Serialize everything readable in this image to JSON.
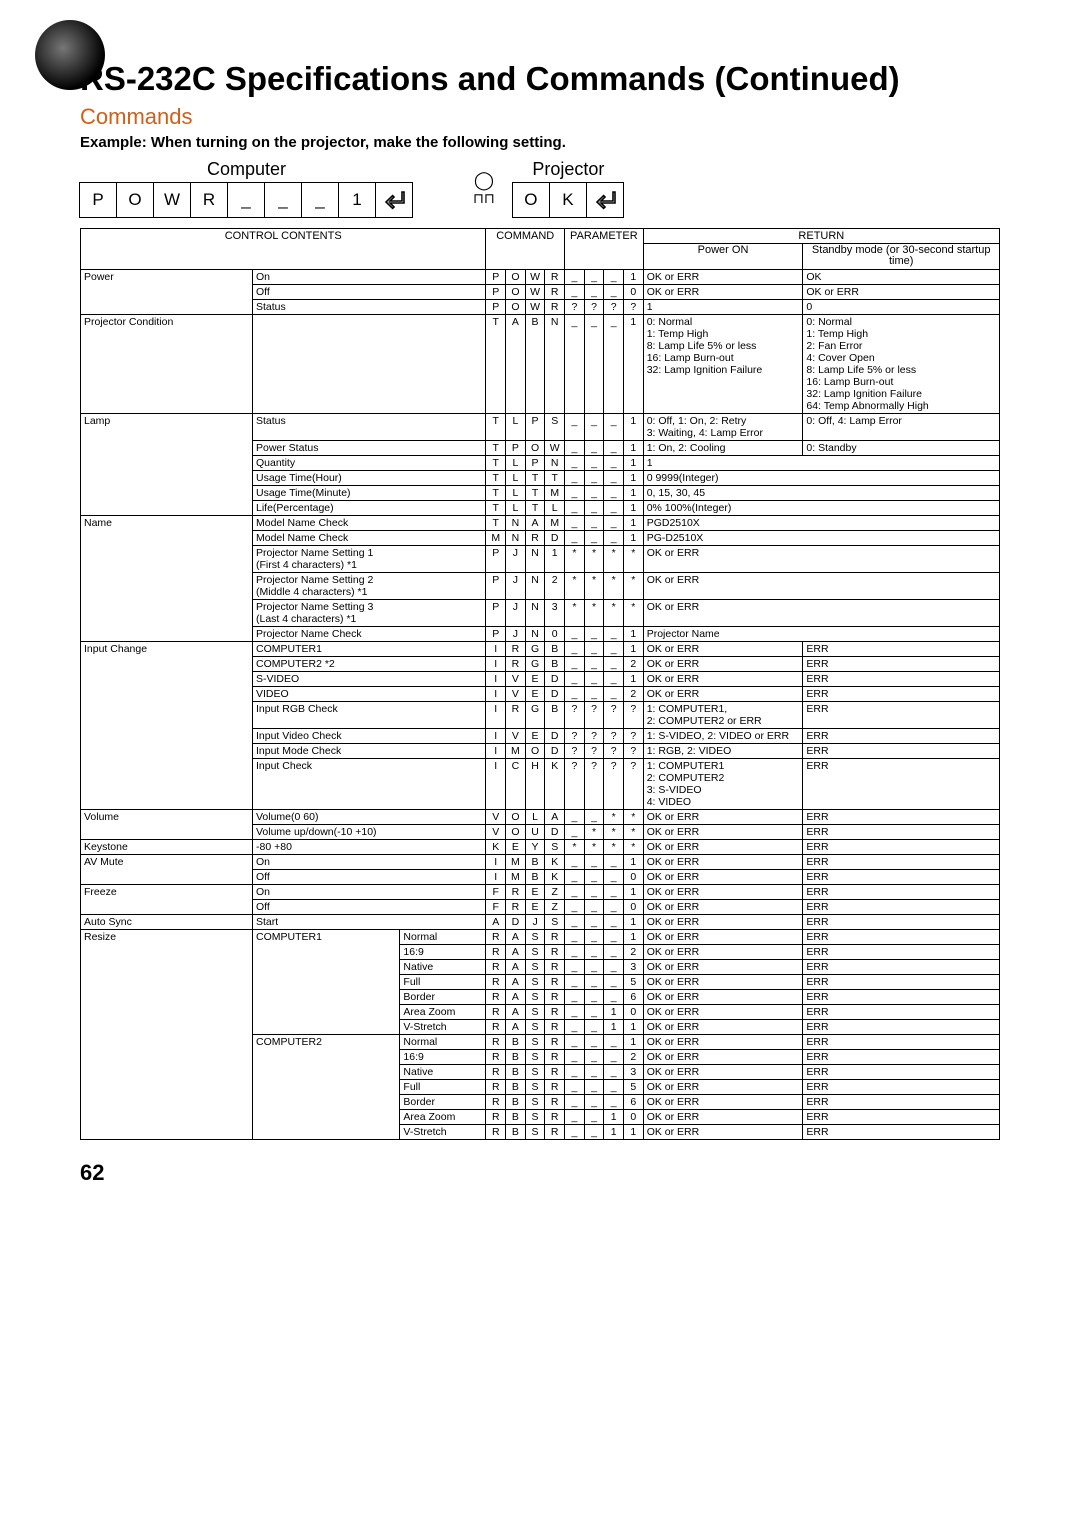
{
  "title": "RS-232C Specifications and Commands (Continued)",
  "subhead": "Commands",
  "example": "Example: When turning on the projector, make the following setting.",
  "computer_label": "Computer",
  "projector_label": "Projector",
  "computer_seq": [
    "P",
    "O",
    "W",
    "R",
    "_",
    "_",
    "_",
    "1",
    "↵"
  ],
  "projector_seq": [
    "O",
    "K",
    "↵"
  ],
  "page_num": "62",
  "headers": {
    "control": "CONTROL CONTENTS",
    "command": "COMMAND",
    "parameter": "PARAMETER",
    "return": "RETURN",
    "power_on": "Power ON",
    "standby": "Standby mode\n(or 30-second startup time)"
  },
  "rows": [
    {
      "g": "Power",
      "c": "On",
      "s": "",
      "cmd": [
        "P",
        "O",
        "W",
        "R",
        "_",
        "_",
        "_",
        "1"
      ],
      "r1": "OK or ERR",
      "r2": "OK"
    },
    {
      "g": "",
      "c": "Off",
      "s": "",
      "cmd": [
        "P",
        "O",
        "W",
        "R",
        "_",
        "_",
        "_",
        "0"
      ],
      "r1": "OK or ERR",
      "r2": "OK or ERR"
    },
    {
      "g": "",
      "c": "Status",
      "s": "",
      "cmd": [
        "P",
        "O",
        "W",
        "R",
        "?",
        "?",
        "?",
        "?"
      ],
      "r1": "1",
      "r2": "0"
    },
    {
      "g": "Projector Condition",
      "c": "",
      "s": "",
      "cmd": [
        "T",
        "A",
        "B",
        "N",
        "_",
        "_",
        "_",
        "1"
      ],
      "r1": "0: Normal\n1: Temp High\n8: Lamp Life 5% or less\n16: Lamp Burn-out\n32: Lamp Ignition Failure",
      "r2": "0: Normal\n1: Temp High\n2: Fan Error\n4: Cover Open\n8: Lamp Life 5% or less\n16: Lamp Burn-out\n32: Lamp Ignition Failure\n64: Temp Abnormally High"
    },
    {
      "g": "Lamp",
      "c": "Status",
      "s": "",
      "cmd": [
        "T",
        "L",
        "P",
        "S",
        "_",
        "_",
        "_",
        "1"
      ],
      "r1": "0: Off, 1: On, 2: Retry\n3: Waiting, 4: Lamp Error",
      "r2": "0: Off, 4: Lamp Error"
    },
    {
      "g": "",
      "c": "Power Status",
      "s": "",
      "cmd": [
        "T",
        "P",
        "O",
        "W",
        "_",
        "_",
        "_",
        "1"
      ],
      "r1": "1: On, 2: Cooling",
      "r2": "0: Standby"
    },
    {
      "g": "",
      "c": "Quantity",
      "s": "",
      "cmd": [
        "T",
        "L",
        "P",
        "N",
        "_",
        "_",
        "_",
        "1"
      ],
      "r1": "1",
      "r2": "",
      "span": true
    },
    {
      "g": "",
      "c": "Usage Time(Hour)",
      "s": "",
      "cmd": [
        "T",
        "L",
        "T",
        "T",
        "_",
        "_",
        "_",
        "1"
      ],
      "r1": "0   9999(Integer)",
      "r2": "",
      "span": true
    },
    {
      "g": "",
      "c": "Usage Time(Minute)",
      "s": "",
      "cmd": [
        "T",
        "L",
        "T",
        "M",
        "_",
        "_",
        "_",
        "1"
      ],
      "r1": "0, 15, 30, 45",
      "r2": "",
      "span": true
    },
    {
      "g": "",
      "c": "Life(Percentage)",
      "s": "",
      "cmd": [
        "T",
        "L",
        "T",
        "L",
        "_",
        "_",
        "_",
        "1"
      ],
      "r1": "0%   100%(Integer)",
      "r2": "",
      "span": true
    },
    {
      "g": "Name",
      "c": "Model Name Check",
      "s": "",
      "cmd": [
        "T",
        "N",
        "A",
        "M",
        "_",
        "_",
        "_",
        "1"
      ],
      "r1": "PGD2510X",
      "r2": "",
      "span": true
    },
    {
      "g": "",
      "c": "Model Name Check",
      "s": "",
      "cmd": [
        "M",
        "N",
        "R",
        "D",
        "_",
        "_",
        "_",
        "1"
      ],
      "r1": "PG-D2510X",
      "r2": "",
      "span": true
    },
    {
      "g": "",
      "c": "Projector Name Setting 1\n(First 4 characters) *1",
      "s": "",
      "cmd": [
        "P",
        "J",
        "N",
        "1",
        "*",
        "*",
        "*",
        "*"
      ],
      "r1": "OK or ERR",
      "r2": "",
      "span": true
    },
    {
      "g": "",
      "c": "Projector Name Setting 2\n(Middle 4 characters) *1",
      "s": "",
      "cmd": [
        "P",
        "J",
        "N",
        "2",
        "*",
        "*",
        "*",
        "*"
      ],
      "r1": "OK or ERR",
      "r2": "",
      "span": true
    },
    {
      "g": "",
      "c": "Projector Name Setting 3\n(Last 4 characters) *1",
      "s": "",
      "cmd": [
        "P",
        "J",
        "N",
        "3",
        "*",
        "*",
        "*",
        "*"
      ],
      "r1": "OK or ERR",
      "r2": "",
      "span": true
    },
    {
      "g": "",
      "c": "Projector Name Check",
      "s": "",
      "cmd": [
        "P",
        "J",
        "N",
        "0",
        "_",
        "_",
        "_",
        "1"
      ],
      "r1": "Projector Name",
      "r2": "",
      "span": true
    },
    {
      "g": "Input Change",
      "c": "COMPUTER1",
      "s": "",
      "cmd": [
        "I",
        "R",
        "G",
        "B",
        "_",
        "_",
        "_",
        "1"
      ],
      "r1": "OK or ERR",
      "r2": "ERR"
    },
    {
      "g": "",
      "c": "COMPUTER2 *2",
      "s": "",
      "cmd": [
        "I",
        "R",
        "G",
        "B",
        "_",
        "_",
        "_",
        "2"
      ],
      "r1": "OK or ERR",
      "r2": "ERR"
    },
    {
      "g": "",
      "c": "S-VIDEO",
      "s": "",
      "cmd": [
        "I",
        "V",
        "E",
        "D",
        "_",
        "_",
        "_",
        "1"
      ],
      "r1": "OK or ERR",
      "r2": "ERR"
    },
    {
      "g": "",
      "c": "VIDEO",
      "s": "",
      "cmd": [
        "I",
        "V",
        "E",
        "D",
        "_",
        "_",
        "_",
        "2"
      ],
      "r1": "OK or ERR",
      "r2": "ERR"
    },
    {
      "g": "",
      "c": "Input RGB Check",
      "s": "",
      "cmd": [
        "I",
        "R",
        "G",
        "B",
        "?",
        "?",
        "?",
        "?"
      ],
      "r1": "1: COMPUTER1,\n2: COMPUTER2 or ERR",
      "r2": "ERR"
    },
    {
      "g": "",
      "c": "Input Video Check",
      "s": "",
      "cmd": [
        "I",
        "V",
        "E",
        "D",
        "?",
        "?",
        "?",
        "?"
      ],
      "r1": "1: S-VIDEO, 2: VIDEO or ERR",
      "r2": "ERR"
    },
    {
      "g": "",
      "c": "Input Mode Check",
      "s": "",
      "cmd": [
        "I",
        "M",
        "O",
        "D",
        "?",
        "?",
        "?",
        "?"
      ],
      "r1": "1: RGB, 2: VIDEO",
      "r2": "ERR"
    },
    {
      "g": "",
      "c": "Input Check",
      "s": "",
      "cmd": [
        "I",
        "C",
        "H",
        "K",
        "?",
        "?",
        "?",
        "?"
      ],
      "r1": "1: COMPUTER1\n2: COMPUTER2\n3: S-VIDEO\n4: VIDEO",
      "r2": "ERR"
    },
    {
      "g": "Volume",
      "c": "Volume(0   60)",
      "s": "",
      "cmd": [
        "V",
        "O",
        "L",
        "A",
        "_",
        "_",
        "*",
        "*"
      ],
      "r1": "OK or ERR",
      "r2": "ERR"
    },
    {
      "g": "",
      "c": "Volume up/down(-10   +10)",
      "s": "",
      "cmd": [
        "V",
        "O",
        "U",
        "D",
        "_",
        "*",
        "*",
        "*"
      ],
      "r1": "OK or ERR",
      "r2": "ERR"
    },
    {
      "g": "Keystone",
      "c": "-80   +80",
      "s": "",
      "cmd": [
        "K",
        "E",
        "Y",
        "S",
        "*",
        "*",
        "*",
        "*"
      ],
      "r1": "OK or ERR",
      "r2": "ERR"
    },
    {
      "g": "AV Mute",
      "c": "On",
      "s": "",
      "cmd": [
        "I",
        "M",
        "B",
        "K",
        "_",
        "_",
        "_",
        "1"
      ],
      "r1": "OK or ERR",
      "r2": "ERR"
    },
    {
      "g": "",
      "c": "Off",
      "s": "",
      "cmd": [
        "I",
        "M",
        "B",
        "K",
        "_",
        "_",
        "_",
        "0"
      ],
      "r1": "OK or ERR",
      "r2": "ERR"
    },
    {
      "g": "Freeze",
      "c": "On",
      "s": "",
      "cmd": [
        "F",
        "R",
        "E",
        "Z",
        "_",
        "_",
        "_",
        "1"
      ],
      "r1": "OK or ERR",
      "r2": "ERR"
    },
    {
      "g": "",
      "c": "Off",
      "s": "",
      "cmd": [
        "F",
        "R",
        "E",
        "Z",
        "_",
        "_",
        "_",
        "0"
      ],
      "r1": "OK or ERR",
      "r2": "ERR"
    },
    {
      "g": "Auto Sync",
      "c": "Start",
      "s": "",
      "cmd": [
        "A",
        "D",
        "J",
        "S",
        "_",
        "_",
        "_",
        "1"
      ],
      "r1": "OK or ERR",
      "r2": "ERR"
    },
    {
      "g": "Resize",
      "c": "COMPUTER1",
      "s": "Normal",
      "cmd": [
        "R",
        "A",
        "S",
        "R",
        "_",
        "_",
        "_",
        "1"
      ],
      "r1": "OK or ERR",
      "r2": "ERR"
    },
    {
      "g": "",
      "c": "",
      "s": "16:9",
      "cmd": [
        "R",
        "A",
        "S",
        "R",
        "_",
        "_",
        "_",
        "2"
      ],
      "r1": "OK or ERR",
      "r2": "ERR"
    },
    {
      "g": "",
      "c": "",
      "s": "Native",
      "cmd": [
        "R",
        "A",
        "S",
        "R",
        "_",
        "_",
        "_",
        "3"
      ],
      "r1": "OK or ERR",
      "r2": "ERR"
    },
    {
      "g": "",
      "c": "",
      "s": "Full",
      "cmd": [
        "R",
        "A",
        "S",
        "R",
        "_",
        "_",
        "_",
        "5"
      ],
      "r1": "OK or ERR",
      "r2": "ERR"
    },
    {
      "g": "",
      "c": "",
      "s": "Border",
      "cmd": [
        "R",
        "A",
        "S",
        "R",
        "_",
        "_",
        "_",
        "6"
      ],
      "r1": "OK or ERR",
      "r2": "ERR"
    },
    {
      "g": "",
      "c": "",
      "s": "Area Zoom",
      "cmd": [
        "R",
        "A",
        "S",
        "R",
        "_",
        "_",
        "1",
        "0"
      ],
      "r1": "OK or ERR",
      "r2": "ERR"
    },
    {
      "g": "",
      "c": "",
      "s": "V-Stretch",
      "cmd": [
        "R",
        "A",
        "S",
        "R",
        "_",
        "_",
        "1",
        "1"
      ],
      "r1": "OK or ERR",
      "r2": "ERR"
    },
    {
      "g": "",
      "c": "COMPUTER2",
      "s": "Normal",
      "cmd": [
        "R",
        "B",
        "S",
        "R",
        "_",
        "_",
        "_",
        "1"
      ],
      "r1": "OK or ERR",
      "r2": "ERR"
    },
    {
      "g": "",
      "c": "",
      "s": "16:9",
      "cmd": [
        "R",
        "B",
        "S",
        "R",
        "_",
        "_",
        "_",
        "2"
      ],
      "r1": "OK or ERR",
      "r2": "ERR"
    },
    {
      "g": "",
      "c": "",
      "s": "Native",
      "cmd": [
        "R",
        "B",
        "S",
        "R",
        "_",
        "_",
        "_",
        "3"
      ],
      "r1": "OK or ERR",
      "r2": "ERR"
    },
    {
      "g": "",
      "c": "",
      "s": "Full",
      "cmd": [
        "R",
        "B",
        "S",
        "R",
        "_",
        "_",
        "_",
        "5"
      ],
      "r1": "OK or ERR",
      "r2": "ERR"
    },
    {
      "g": "",
      "c": "",
      "s": "Border",
      "cmd": [
        "R",
        "B",
        "S",
        "R",
        "_",
        "_",
        "_",
        "6"
      ],
      "r1": "OK or ERR",
      "r2": "ERR"
    },
    {
      "g": "",
      "c": "",
      "s": "Area Zoom",
      "cmd": [
        "R",
        "B",
        "S",
        "R",
        "_",
        "_",
        "1",
        "0"
      ],
      "r1": "OK or ERR",
      "r2": "ERR"
    },
    {
      "g": "",
      "c": "",
      "s": "V-Stretch",
      "cmd": [
        "R",
        "B",
        "S",
        "R",
        "_",
        "_",
        "1",
        "1"
      ],
      "r1": "OK or ERR",
      "r2": "ERR"
    }
  ]
}
